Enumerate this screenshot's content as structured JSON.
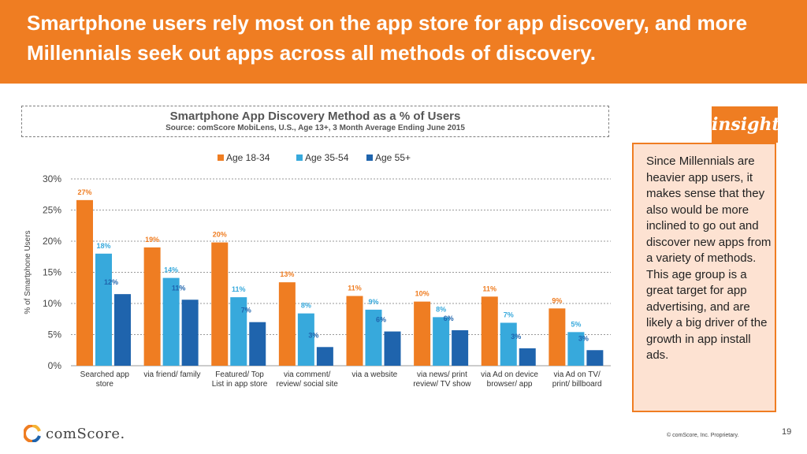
{
  "header": {
    "title": "Smartphone users rely most on the app store for app discovery, and more Millennials seek out apps across all methods of discovery."
  },
  "insight": {
    "tag": "insight",
    "text": "Since Millennials are heavier app users, it makes sense that they also would be more inclined to go out and discover new apps from a variety of methods. This age group is a great target for app advertising, and are likely a big driver of the growth in app install ads."
  },
  "footer": {
    "logo": "comScore.",
    "copyright": "© comScore, Inc. Proprietary.",
    "page": "19"
  },
  "colors": {
    "accent": "#ef7d22",
    "age_18_34": "#ef7d22",
    "age_35_54": "#37a9dc",
    "age_55_plus": "#1f64ad"
  },
  "chart_data": {
    "type": "bar",
    "title": "Smartphone App Discovery Method as a % of Users",
    "subtitle": "Source: comScore MobiLens, U.S., Age 13+, 3 Month Average Ending June 2015",
    "ylabel": "% of Smartphone Users",
    "xlabel": "",
    "ylim": [
      0,
      30
    ],
    "yticks": [
      "0%",
      "5%",
      "10%",
      "15%",
      "20%",
      "25%",
      "30%"
    ],
    "grid": true,
    "legend": "top",
    "categories": [
      [
        "Searched app",
        "store"
      ],
      [
        "via friend/ family"
      ],
      [
        "Featured/ Top",
        "List in app store"
      ],
      [
        "via comment/",
        "review/ social site"
      ],
      [
        "via a website"
      ],
      [
        "via news/ print",
        "review/ TV show"
      ],
      [
        "via Ad on device",
        "browser/ app"
      ],
      [
        "via Ad on TV/",
        "print/ billboard"
      ]
    ],
    "series": [
      {
        "name": "Age 18-34",
        "color": "#ef7d22",
        "values": [
          26.6,
          19.0,
          19.8,
          13.4,
          11.2,
          10.3,
          11.1,
          9.2
        ],
        "labels": [
          "27%",
          "19%",
          "20%",
          "13%",
          "11%",
          "10%",
          "11%",
          "9%"
        ]
      },
      {
        "name": "Age 35-54",
        "color": "#37a9dc",
        "values": [
          18.0,
          14.1,
          11.0,
          8.4,
          9.0,
          7.8,
          6.9,
          5.4
        ],
        "labels": [
          "18%",
          "14%",
          "11%",
          "8%",
          "9%",
          "8%",
          "7%",
          "5%"
        ]
      },
      {
        "name": "Age 55+",
        "color": "#1f64ad",
        "values": [
          11.5,
          10.6,
          7.0,
          3.0,
          5.5,
          5.7,
          2.8,
          2.5
        ],
        "labels": [
          "12%",
          "11%",
          "7%",
          "3%",
          "6%",
          "6%",
          "3%",
          "3%"
        ]
      }
    ]
  }
}
